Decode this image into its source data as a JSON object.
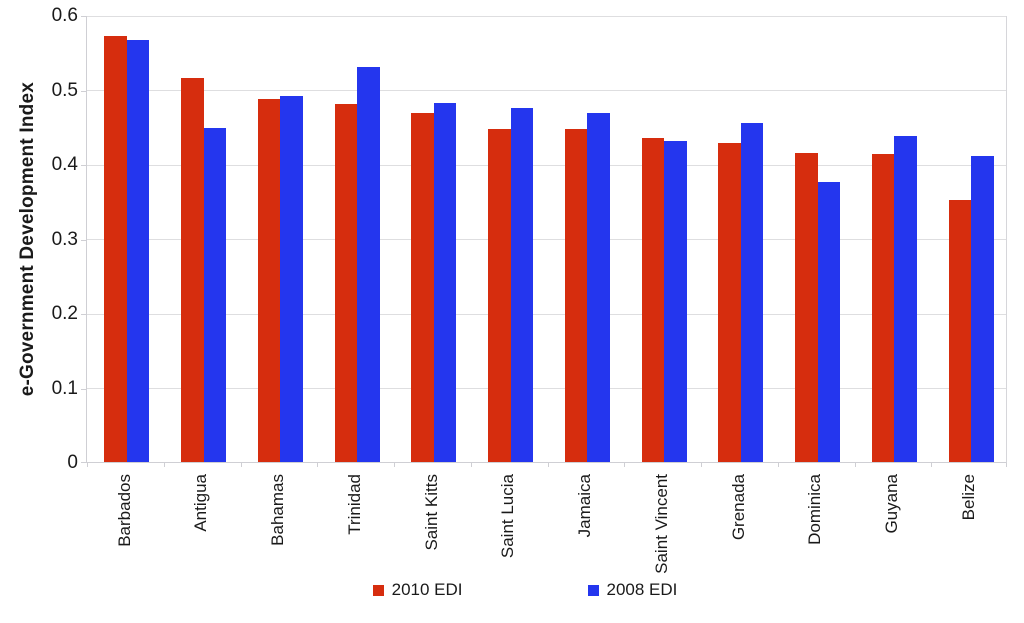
{
  "chart_data": {
    "type": "bar",
    "title": "",
    "xlabel": "",
    "ylabel": "e-Government Development Index",
    "ylim": [
      0,
      0.6
    ],
    "yticks": [
      0,
      0.1,
      0.2,
      0.3,
      0.4,
      0.5,
      0.6
    ],
    "ytick_labels": [
      "0",
      "0.1",
      "0.2",
      "0.3",
      "0.4",
      "0.5",
      "0.6"
    ],
    "grid": true,
    "legend_position": "bottom",
    "categories": [
      "Barbados",
      "Antigua",
      "Bahamas",
      "Trinidad",
      "Saint Kitts",
      "Saint Lucia",
      "Jamaica",
      "Saint Vincent",
      "Grenada",
      "Dominica",
      "Guyana",
      "Belize"
    ],
    "series": [
      {
        "name": "2010 EDI",
        "color": "#d62d0e",
        "values": [
          0.5714,
          0.5154,
          0.4871,
          0.4806,
          0.4691,
          0.4471,
          0.4467,
          0.4355,
          0.4277,
          0.4149,
          0.414,
          0.3513
        ]
      },
      {
        "name": "2008 EDI",
        "color": "#2436ee",
        "values": [
          0.5667,
          0.4485,
          0.492,
          0.5307,
          0.4814,
          0.4746,
          0.4684,
          0.4306,
          0.4546,
          0.3754,
          0.4375,
          0.4107
        ]
      }
    ]
  },
  "colors": {
    "background": "#ffffff",
    "gridline": "#dedee0",
    "axis": "#cfcfd4",
    "text": "#1a1a1a"
  }
}
